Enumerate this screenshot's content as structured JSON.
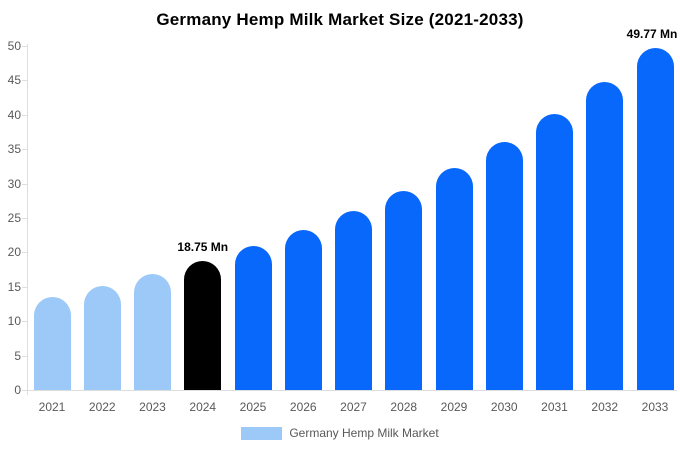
{
  "title": "Germany Hemp Milk Market Size (2021-2033)",
  "legend": {
    "label": "Germany Hemp Milk Market"
  },
  "colors": {
    "historical_bar": "#9DC9F9",
    "base_year_bar": "#000000",
    "forecast_bar": "#0768FB",
    "axis_line": "#DEDEDE",
    "axis_text": "#595959",
    "annotation_text": "#000000",
    "background": "#FFFFFF"
  },
  "chart_data": {
    "type": "bar",
    "title": "Germany Hemp Milk Market Size (2021-2033)",
    "unit": "Mn",
    "categories": [
      "2021",
      "2022",
      "2023",
      "2024",
      "2025",
      "2026",
      "2027",
      "2028",
      "2029",
      "2030",
      "2031",
      "2032",
      "2033"
    ],
    "values": [
      13.5,
      15.1,
      16.8,
      18.75,
      20.9,
      23.3,
      26.0,
      28.9,
      32.3,
      36.0,
      40.1,
      44.7,
      49.77
    ],
    "bar_color_roles": [
      "historical",
      "historical",
      "historical",
      "base_year",
      "forecast",
      "forecast",
      "forecast",
      "forecast",
      "forecast",
      "forecast",
      "forecast",
      "forecast",
      "forecast"
    ],
    "data_labels": [
      {
        "category": "2024",
        "text": "18.75 Mn"
      },
      {
        "category": "2033",
        "text": "49.77 Mn"
      }
    ],
    "xlabel": "",
    "ylabel": "",
    "ylim": [
      0,
      50
    ],
    "yticks": [
      0,
      5,
      10,
      15,
      20,
      25,
      30,
      35,
      40,
      45,
      50
    ],
    "grid": false,
    "legend_position": "bottom",
    "legend_entries": [
      "Germany Hemp Milk Market"
    ]
  }
}
